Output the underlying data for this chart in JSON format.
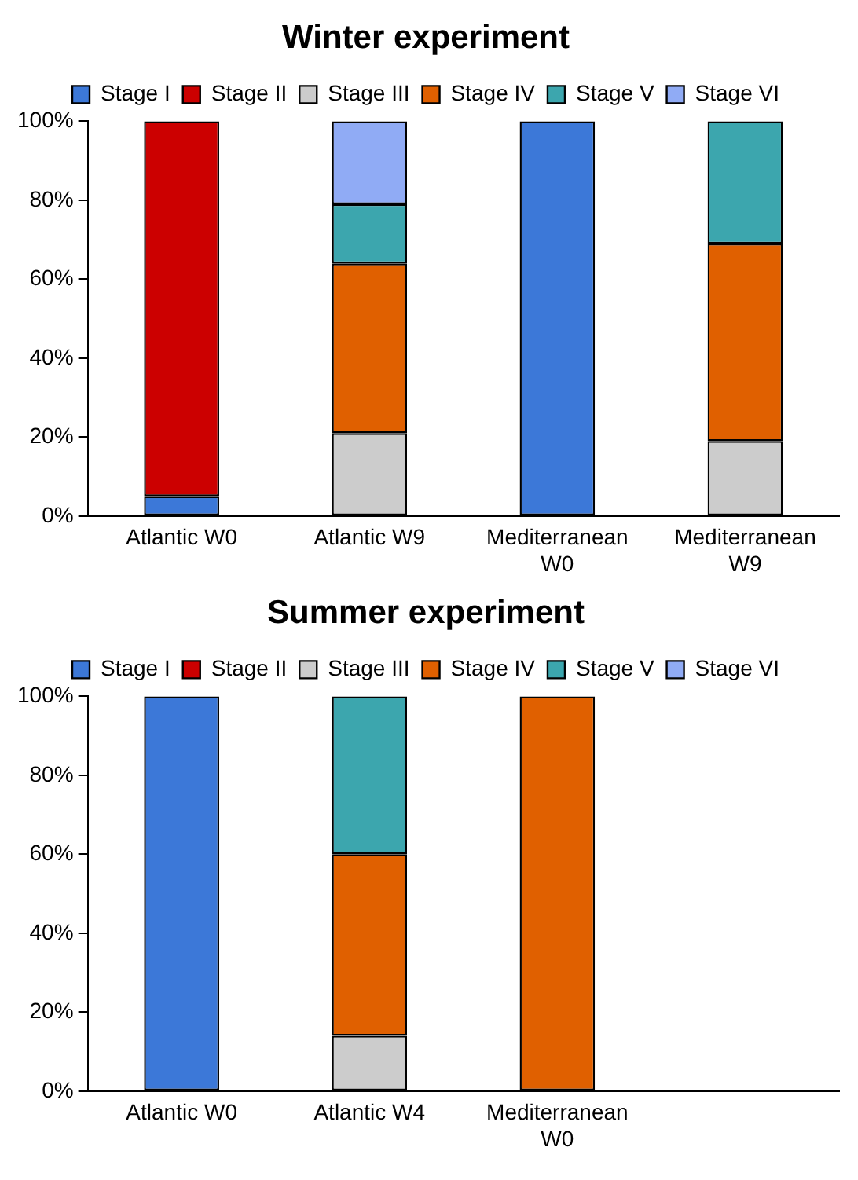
{
  "chart_data": [
    {
      "type": "bar",
      "title": "Winter experiment",
      "stacked": true,
      "legend": "top",
      "grid": false,
      "categories": [
        "Atlantic W0",
        "Atlantic W9",
        "Mediterranean W0",
        "Mediterranean W9"
      ],
      "ylim": [
        0,
        100
      ],
      "yticks": [
        {
          "value": 0,
          "label": "0%"
        },
        {
          "value": 20,
          "label": "20%"
        },
        {
          "value": 40,
          "label": "40%"
        },
        {
          "value": 60,
          "label": "60%"
        },
        {
          "value": 80,
          "label": "80%"
        },
        {
          "value": 100,
          "label": "100%"
        }
      ],
      "series": [
        {
          "name": "Stage I",
          "color": "#3c78d8",
          "values": [
            5,
            0,
            100,
            0
          ]
        },
        {
          "name": "Stage II",
          "color": "#cc0000",
          "values": [
            95,
            0,
            0,
            0
          ]
        },
        {
          "name": "Stage III",
          "color": "#cccccc",
          "values": [
            0,
            21,
            0,
            19
          ]
        },
        {
          "name": "Stage IV",
          "color": "#e06000",
          "values": [
            0,
            43,
            0,
            50
          ]
        },
        {
          "name": "Stage V",
          "color": "#3ca6ae",
          "values": [
            0,
            15,
            0,
            31
          ]
        },
        {
          "name": "Stage VI",
          "color": "#90abf5",
          "values": [
            0,
            21,
            0,
            0
          ]
        }
      ]
    },
    {
      "type": "bar",
      "title": "Summer experiment",
      "stacked": true,
      "legend": "top",
      "grid": false,
      "categories": [
        "Atlantic W0",
        "Atlantic W4",
        "Mediterranean W0",
        null
      ],
      "ylim": [
        0,
        100
      ],
      "yticks": [
        {
          "value": 0,
          "label": "0%"
        },
        {
          "value": 20,
          "label": "20%"
        },
        {
          "value": 40,
          "label": "40%"
        },
        {
          "value": 60,
          "label": "60%"
        },
        {
          "value": 80,
          "label": "80%"
        },
        {
          "value": 100,
          "label": "100%"
        }
      ],
      "series": [
        {
          "name": "Stage I",
          "color": "#3c78d8",
          "values": [
            100,
            0,
            0,
            null
          ]
        },
        {
          "name": "Stage II",
          "color": "#cc0000",
          "values": [
            0,
            0,
            0,
            null
          ]
        },
        {
          "name": "Stage III",
          "color": "#cccccc",
          "values": [
            0,
            14,
            0,
            null
          ]
        },
        {
          "name": "Stage IV",
          "color": "#e06000",
          "values": [
            0,
            46,
            100,
            null
          ]
        },
        {
          "name": "Stage V",
          "color": "#3ca6ae",
          "values": [
            0,
            40,
            0,
            null
          ]
        },
        {
          "name": "Stage VI",
          "color": "#90abf5",
          "values": [
            0,
            0,
            0,
            null
          ]
        }
      ]
    }
  ]
}
